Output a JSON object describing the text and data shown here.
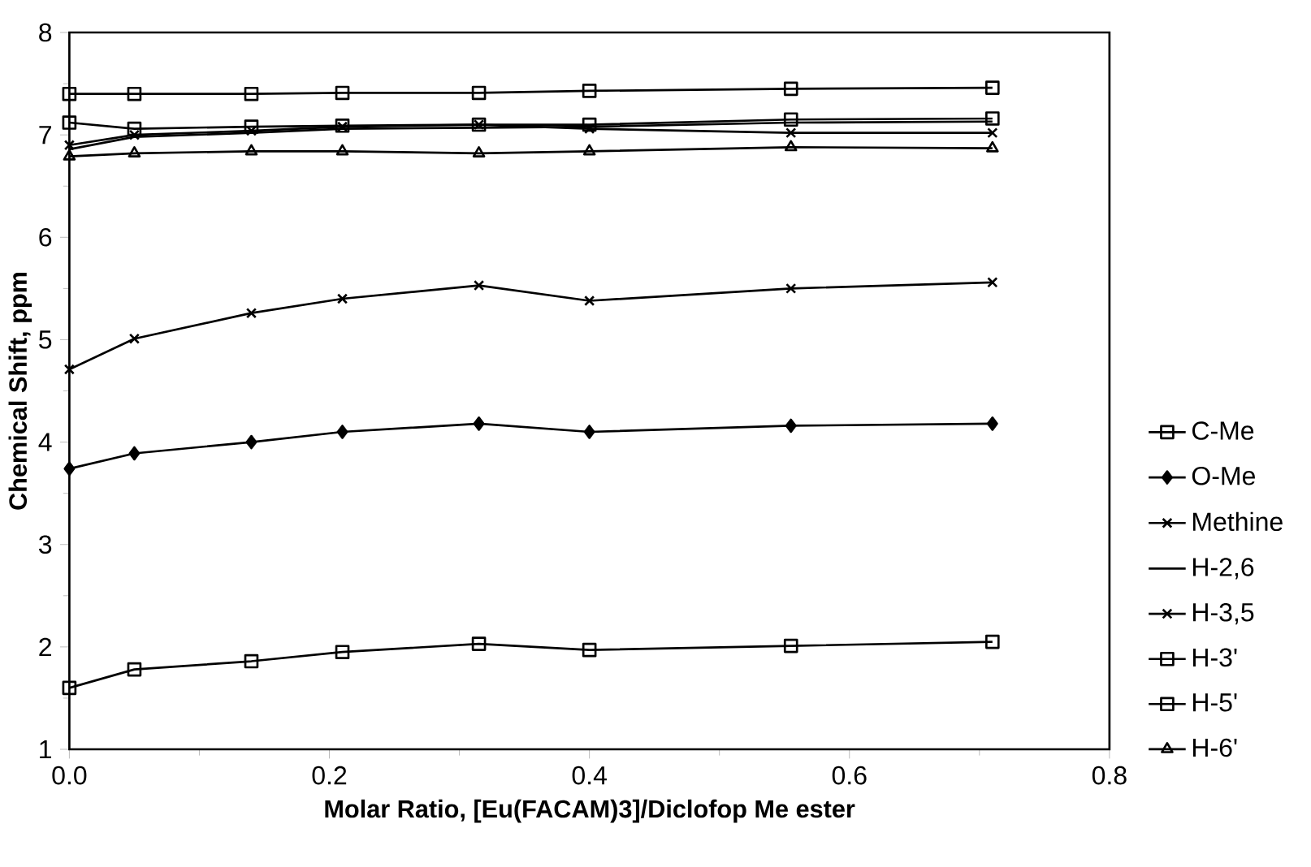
{
  "chart_data": {
    "type": "line",
    "xlabel": "Molar Ratio, [Eu(FACAM)3]/Diclofop Me ester",
    "ylabel": "Chemical Shift, ppm",
    "x": [
      0,
      0.05,
      0.14,
      0.21,
      0.315,
      0.4,
      0.555,
      0.71
    ],
    "xlim": [
      0,
      0.8
    ],
    "xticks": [
      {
        "value": 0,
        "label": "0.0"
      },
      0.2,
      0.4,
      0.6,
      0.8
    ],
    "ylim": [
      1,
      8
    ],
    "yticks": [
      1,
      2,
      3,
      4,
      5,
      6,
      7,
      8
    ],
    "grid": false,
    "legend": "right",
    "line_style": "solid",
    "series": [
      {
        "name": "C-Me",
        "color": "#000000",
        "marker": "square",
        "values": [
          1.6,
          1.78,
          1.86,
          1.95,
          2.03,
          1.97,
          2.01,
          2.05
        ]
      },
      {
        "name": "O-Me",
        "color": "#000000",
        "marker": "diamond",
        "values": [
          3.74,
          3.89,
          4.0,
          4.1,
          4.18,
          4.1,
          4.16,
          4.18
        ]
      },
      {
        "name": "Methine",
        "color": "#000000",
        "marker": "cross",
        "values": [
          4.71,
          5.01,
          5.26,
          5.4,
          5.53,
          5.38,
          5.5,
          5.56
        ]
      },
      {
        "name": "H-2,6",
        "color": "#000000",
        "marker": "none",
        "values": [
          6.86,
          6.98,
          7.02,
          7.06,
          7.07,
          7.08,
          7.12,
          7.13
        ]
      },
      {
        "name": "H-3,5",
        "color": "#000000",
        "marker": "cross",
        "values": [
          6.9,
          7.0,
          7.04,
          7.08,
          7.1,
          7.06,
          7.02,
          7.02
        ]
      },
      {
        "name": "H-3'",
        "color": "#000000",
        "marker": "square",
        "values": [
          7.4,
          7.4,
          7.4,
          7.41,
          7.41,
          7.43,
          7.45,
          7.46
        ]
      },
      {
        "name": "H-5'",
        "color": "#000000",
        "marker": "square",
        "values": [
          7.12,
          7.06,
          7.08,
          7.09,
          7.1,
          7.1,
          7.15,
          7.16
        ]
      },
      {
        "name": "H-6'",
        "color": "#000000",
        "marker": "triangle",
        "values": [
          6.79,
          6.82,
          6.84,
          6.84,
          6.82,
          6.84,
          6.88,
          6.87
        ]
      }
    ]
  }
}
